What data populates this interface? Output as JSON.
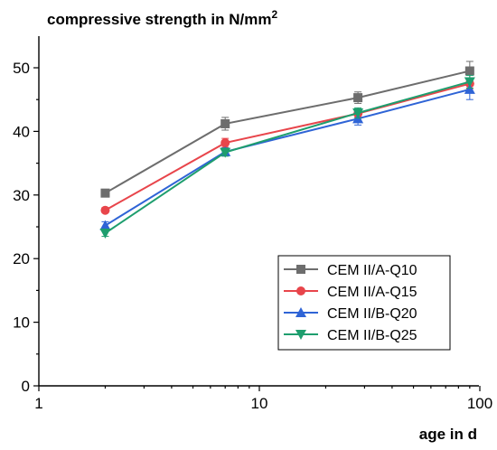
{
  "chart_data": {
    "type": "line",
    "title": "compressive strength in N/mm",
    "title_superscript": "2",
    "xlabel": "age in d",
    "ylabel": "",
    "xscale": "log",
    "xlim": [
      1,
      100
    ],
    "ylim": [
      0,
      55
    ],
    "x_ticks": [
      1,
      10,
      100
    ],
    "x_tick_labels": [
      "1",
      "10",
      "100"
    ],
    "y_ticks": [
      0,
      10,
      20,
      30,
      40,
      50
    ],
    "y_tick_labels": [
      "0",
      "10",
      "20",
      "30",
      "40",
      "50"
    ],
    "grid": false,
    "legend_position": "bottom-right",
    "x": [
      2,
      7,
      28,
      90
    ],
    "series": [
      {
        "name": "CEM II/A-Q10",
        "color": "#6d6d6d",
        "marker": "square",
        "values": [
          30.3,
          41.2,
          45.3,
          49.5
        ],
        "errors": [
          0.6,
          1.0,
          0.9,
          1.5
        ]
      },
      {
        "name": "CEM II/A-Q15",
        "color": "#e8454b",
        "marker": "circle",
        "values": [
          27.6,
          38.2,
          42.8,
          47.5
        ],
        "errors": [
          0.4,
          0.7,
          0.6,
          0.8
        ]
      },
      {
        "name": "CEM II/B-Q20",
        "color": "#2f64d6",
        "marker": "triangle-up",
        "values": [
          25.2,
          36.8,
          42.0,
          46.6
        ],
        "errors": [
          0.6,
          0.6,
          1.0,
          1.6
        ]
      },
      {
        "name": "CEM II/B-Q25",
        "color": "#1e9e6e",
        "marker": "triangle-down",
        "values": [
          24.0,
          36.7,
          42.9,
          47.8
        ],
        "errors": [
          0.5,
          0.6,
          0.8,
          1.0
        ]
      }
    ]
  }
}
